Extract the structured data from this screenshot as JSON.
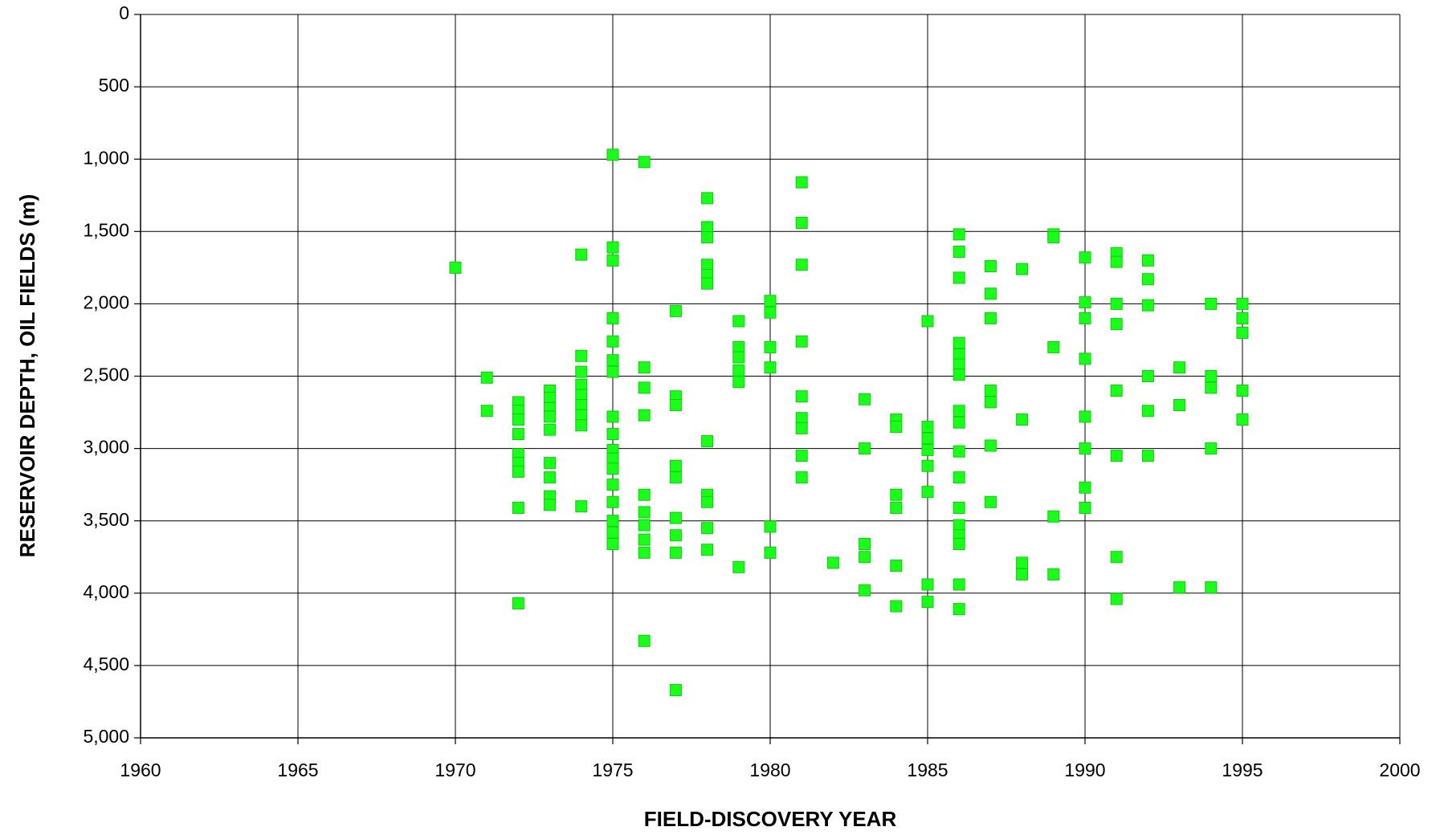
{
  "chart_data": {
    "type": "scatter",
    "xlabel": "FIELD-DISCOVERY YEAR",
    "ylabel": "RESERVOIR DEPTH, OIL FIELDS (m)",
    "xlim": [
      1960,
      2000
    ],
    "xticks": [
      1960,
      1965,
      1970,
      1975,
      1980,
      1985,
      1990,
      1995,
      2000
    ],
    "ylim": [
      0,
      5000
    ],
    "yreverse": true,
    "yticks": [
      0,
      500,
      {
        "value": 1000,
        "label": "1,000"
      },
      {
        "value": 1500,
        "label": "1,500"
      },
      {
        "value": 2000,
        "label": "2,000"
      },
      {
        "value": 2500,
        "label": "2,500"
      },
      {
        "value": 3000,
        "label": "3,000"
      },
      {
        "value": 3500,
        "label": "3,500"
      },
      {
        "value": 4000,
        "label": "4,000"
      },
      {
        "value": 4500,
        "label": "4,500"
      },
      {
        "value": 5000,
        "label": "5,000"
      }
    ],
    "grid": true,
    "color": "#1aff1a",
    "x": [
      1970,
      1971,
      1971,
      1972,
      1972,
      1972,
      1972,
      1972,
      1972,
      1972,
      1972,
      1972,
      1973,
      1973,
      1973,
      1973,
      1973,
      1973,
      1973,
      1973,
      1973,
      1974,
      1974,
      1974,
      1974,
      1974,
      1974,
      1974,
      1974,
      1974,
      1975,
      1975,
      1975,
      1975,
      1975,
      1975,
      1975,
      1975,
      1975,
      1975,
      1975,
      1975,
      1975,
      1975,
      1975,
      1975,
      1975,
      1976,
      1976,
      1976,
      1976,
      1976,
      1976,
      1976,
      1976,
      1976,
      1976,
      1977,
      1977,
      1977,
      1977,
      1977,
      1977,
      1977,
      1977,
      1977,
      1978,
      1978,
      1978,
      1978,
      1978,
      1978,
      1978,
      1978,
      1978,
      1978,
      1978,
      1979,
      1979,
      1979,
      1979,
      1979,
      1979,
      1980,
      1980,
      1980,
      1980,
      1980,
      1980,
      1981,
      1981,
      1981,
      1981,
      1981,
      1981,
      1981,
      1981,
      1981,
      1982,
      1983,
      1983,
      1983,
      1983,
      1983,
      1984,
      1984,
      1984,
      1984,
      1984,
      1984,
      1985,
      1985,
      1985,
      1985,
      1985,
      1985,
      1985,
      1985,
      1986,
      1986,
      1986,
      1986,
      1986,
      1986,
      1986,
      1986,
      1986,
      1986,
      1986,
      1986,
      1986,
      1986,
      1986,
      1986,
      1986,
      1987,
      1987,
      1987,
      1987,
      1987,
      1987,
      1987,
      1988,
      1988,
      1988,
      1988,
      1989,
      1989,
      1989,
      1989,
      1989,
      1990,
      1990,
      1990,
      1990,
      1990,
      1990,
      1990,
      1990,
      1991,
      1991,
      1991,
      1991,
      1991,
      1991,
      1991,
      1991,
      1992,
      1992,
      1992,
      1992,
      1992,
      1992,
      1993,
      1993,
      1993,
      1994,
      1994,
      1994,
      1994,
      1994,
      1995,
      1995,
      1995,
      1995,
      1995
    ],
    "values": [
      1750,
      2510,
      2740,
      2680,
      2740,
      2800,
      2900,
      3040,
      3100,
      3160,
      3410,
      4070,
      2600,
      2650,
      2720,
      2780,
      2870,
      3100,
      3200,
      3330,
      3390,
      1660,
      2360,
      2470,
      2560,
      2630,
      2700,
      2770,
      2840,
      3400,
      970,
      1610,
      1700,
      2100,
      2260,
      2390,
      2470,
      2780,
      2900,
      3010,
      3070,
      3140,
      3250,
      3370,
      3500,
      3580,
      3660,
      1020,
      2440,
      2580,
      2770,
      3320,
      3440,
      3530,
      3630,
      3720,
      4330,
      2050,
      2640,
      2700,
      3120,
      3200,
      3480,
      3600,
      3720,
      4670,
      1270,
      1470,
      1540,
      1730,
      1800,
      1860,
      2950,
      3320,
      3370,
      3550,
      3700,
      2120,
      2300,
      2370,
      2460,
      2540,
      3820,
      1980,
      2060,
      2300,
      2440,
      3540,
      3720,
      1160,
      1440,
      1730,
      2260,
      2640,
      2790,
      2860,
      3050,
      3200,
      3790,
      2660,
      3000,
      3660,
      3750,
      3980,
      2800,
      2850,
      3320,
      3410,
      3810,
      4090,
      2120,
      2850,
      2930,
      3010,
      3120,
      3300,
      3940,
      4060,
      1520,
      1640,
      1820,
      2270,
      2350,
      2420,
      2490,
      2740,
      2820,
      3020,
      3200,
      3410,
      3530,
      3600,
      3660,
      3940,
      4110,
      1740,
      1930,
      2100,
      2600,
      2680,
      2980,
      3370,
      1760,
      2800,
      3790,
      3870,
      1520,
      1540,
      2300,
      3470,
      3870,
      1680,
      1990,
      2100,
      2380,
      2780,
      3000,
      3270,
      3410,
      1650,
      1710,
      2000,
      2140,
      2600,
      3050,
      3750,
      4040,
      1700,
      1830,
      2010,
      2500,
      2740,
      3050,
      2440,
      2700,
      3960,
      2000,
      2500,
      2580,
      3000,
      3960,
      2000,
      2100,
      2200,
      2600,
      2800
    ]
  }
}
